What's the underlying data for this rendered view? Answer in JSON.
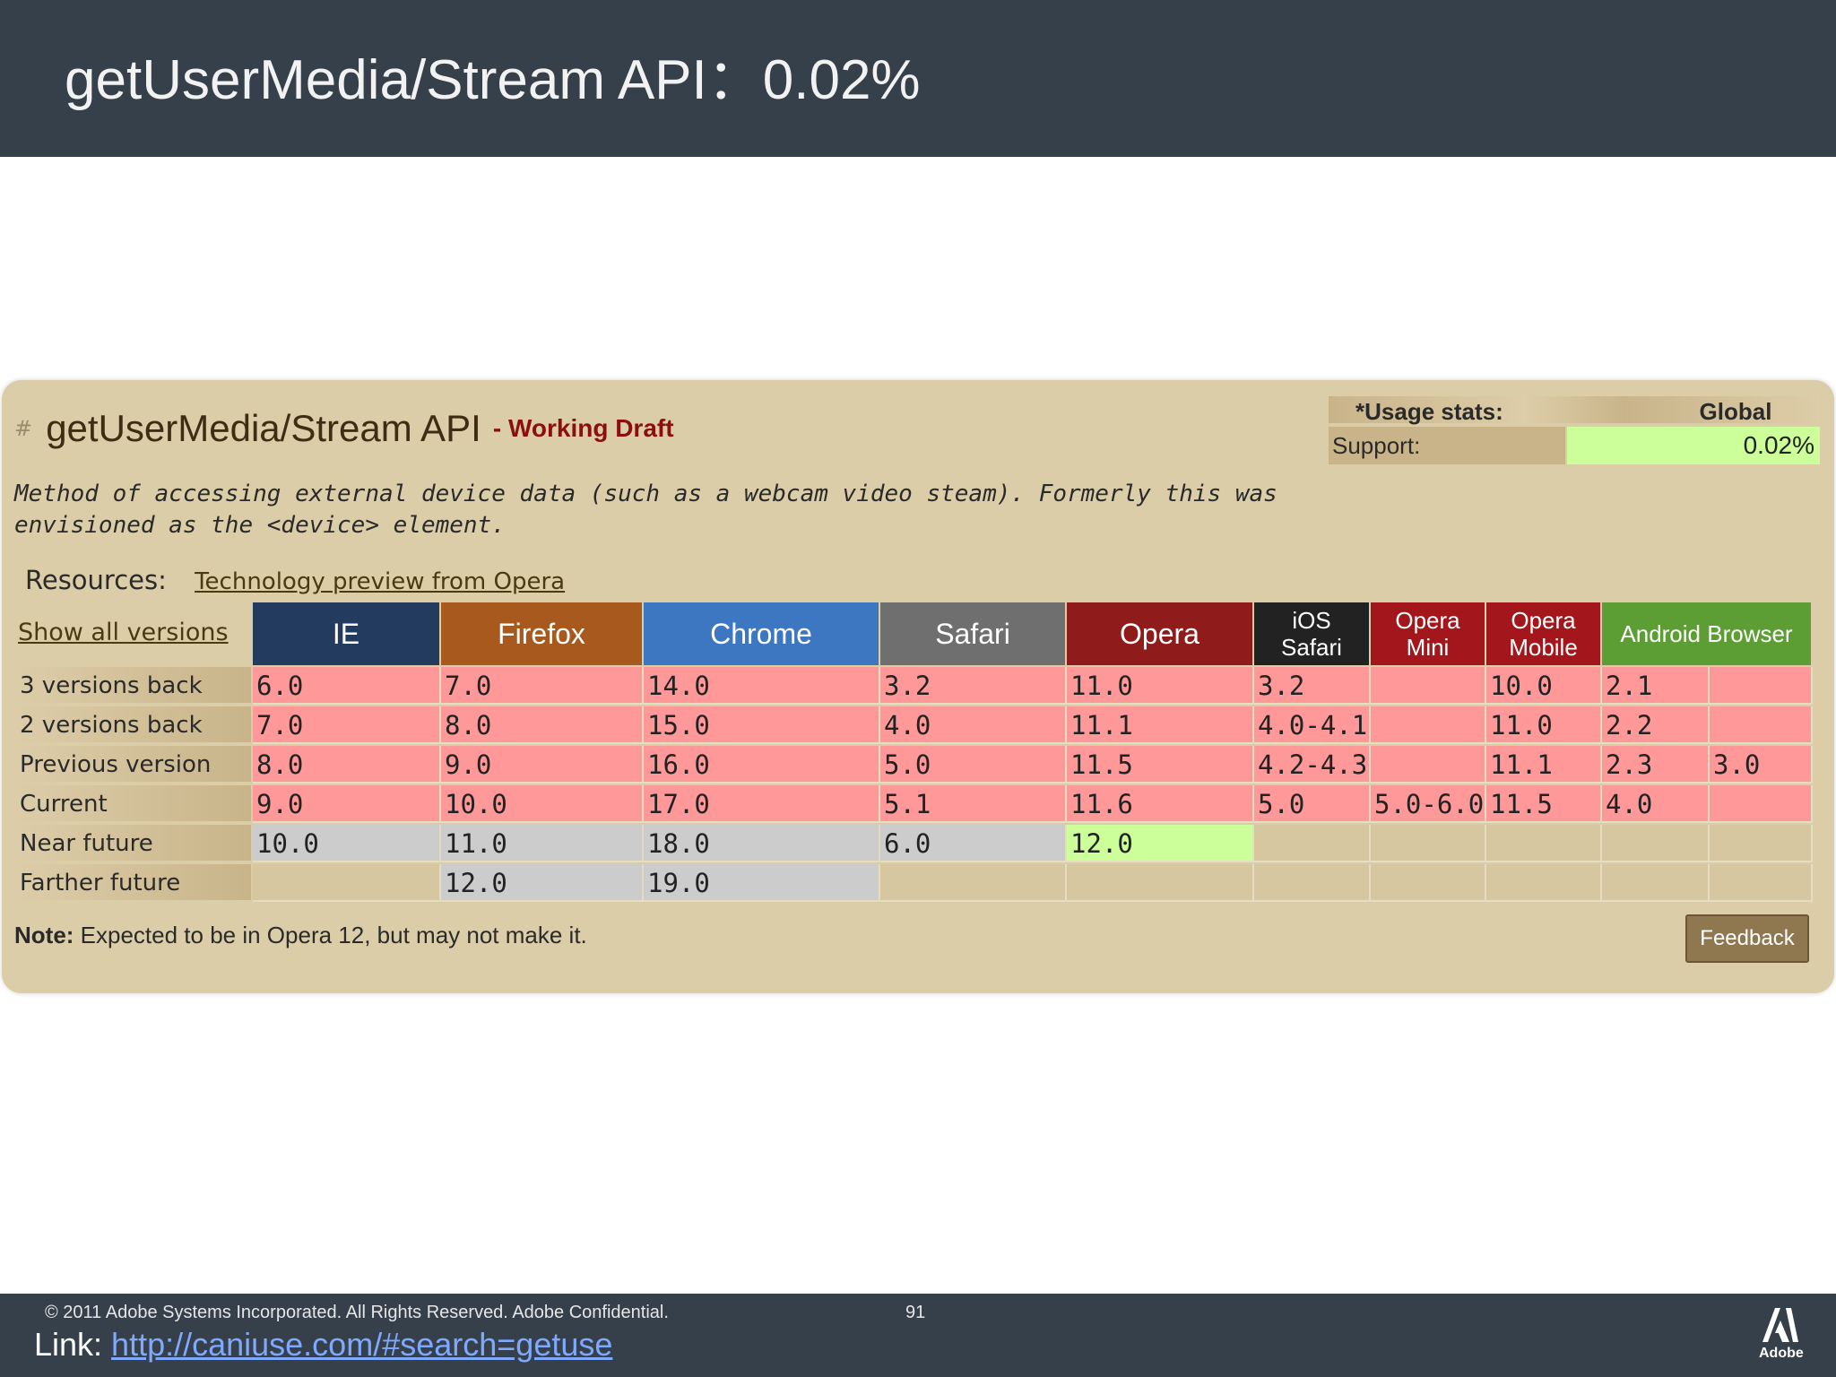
{
  "slide": {
    "title": "getUserMedia/Stream API：0.02%"
  },
  "feature": {
    "hash": "#",
    "name": "getUserMedia/Stream API",
    "status": "- Working Draft",
    "description": "Method of accessing external device data (such as a webcam video steam). Formerly this was envisioned as the <device> element.",
    "resources_label": "Resources:",
    "resources_link": "Technology preview from Opera",
    "show_all": "Show all versions",
    "usage": {
      "label": "*Usage stats:",
      "scope": "Global",
      "support_label": "Support:",
      "support_value": "0.02%"
    },
    "note_label": "Note:",
    "note_text": "Expected to be in Opera 12, but may not make it.",
    "feedback": "Feedback"
  },
  "browsers": [
    {
      "name": "IE",
      "color": "#233b5e"
    },
    {
      "name": "Firefox",
      "color": "#a8591d"
    },
    {
      "name": "Chrome",
      "color": "#3d77c2"
    },
    {
      "name": "Safari",
      "color": "#6f6f6f"
    },
    {
      "name": "Opera",
      "color": "#8f1b1b"
    },
    {
      "name_line1": "iOS",
      "name_line2": "Safari",
      "color": "#222222"
    },
    {
      "name_line1": "Opera",
      "name_line2": "Mini",
      "color": "#a3161c"
    },
    {
      "name_line1": "Opera",
      "name_line2": "Mobile",
      "color": "#a3161c"
    },
    {
      "name": "Android Browser",
      "color": "#5c9d34"
    }
  ],
  "rows": [
    {
      "label": "3 versions back",
      "cells": [
        "6.0",
        "7.0",
        "14.0",
        "3.2",
        "11.0",
        "3.2",
        "",
        "10.0",
        "2.1",
        ""
      ]
    },
    {
      "label": "2 versions back",
      "cells": [
        "7.0",
        "8.0",
        "15.0",
        "4.0",
        "11.1",
        "4.0-4.1",
        "",
        "11.0",
        "2.2",
        ""
      ]
    },
    {
      "label": "Previous version",
      "cells": [
        "8.0",
        "9.0",
        "16.0",
        "5.0",
        "11.5",
        "4.2-4.3",
        "",
        "11.1",
        "2.3",
        "3.0"
      ]
    },
    {
      "label": "Current",
      "cells": [
        "9.0",
        "10.0",
        "17.0",
        "5.1",
        "11.6",
        "5.0",
        "5.0-6.0",
        "11.5",
        "4.0",
        ""
      ]
    },
    {
      "label": "Near future",
      "cells": [
        "10.0",
        "11.0",
        "18.0",
        "6.0",
        "12.0",
        "",
        "",
        "",
        "",
        ""
      ]
    },
    {
      "label": "Farther future",
      "cells": [
        "",
        "12.0",
        "19.0",
        "",
        "",
        "",
        "",
        "",
        "",
        ""
      ]
    }
  ],
  "footer": {
    "copyright": "© 2011 Adobe Systems Incorporated.  All Rights Reserved.  Adobe Confidential.",
    "page_number": "91",
    "link_label": "Link: ",
    "link_url": "http://caniuse.com/#search=getuse",
    "logo_text": "Adobe"
  }
}
